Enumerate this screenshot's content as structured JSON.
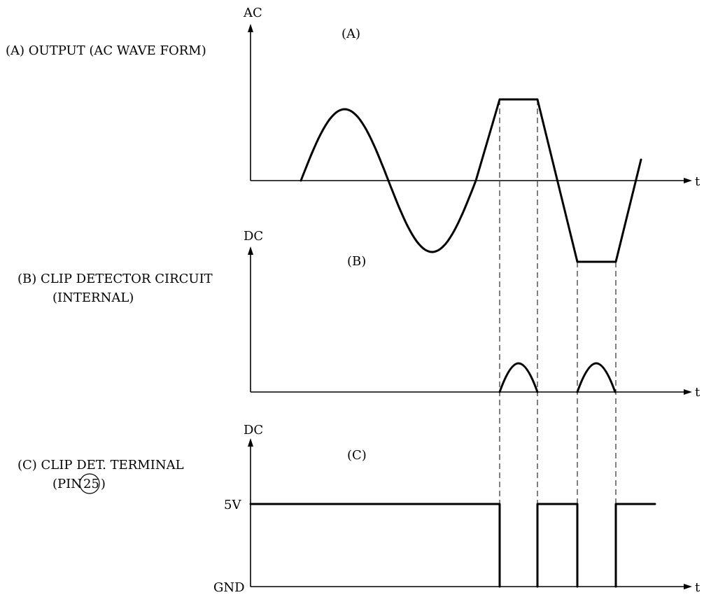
{
  "panels": {
    "a": {
      "side_label": "(A)  OUTPUT (AC WAVE FORM)",
      "tag": "(A)",
      "y_label": "AC",
      "x_label": "t"
    },
    "b": {
      "side_label_line1": "(B)  CLIP DETECTOR CIRCUIT",
      "side_label_line2": "(INTERNAL)",
      "tag": "(B)",
      "y_label": "DC",
      "x_label": "t"
    },
    "c": {
      "side_label_line1": "(C)  CLIP DET. TERMINAL",
      "side_label_line2_prefix": "(PIN",
      "pin_number": "25",
      "side_label_line2_suffix": ")",
      "tag": "(C)",
      "y_label": "DC",
      "x_label": "t",
      "level_high": "5V",
      "level_low": "GND"
    }
  }
}
